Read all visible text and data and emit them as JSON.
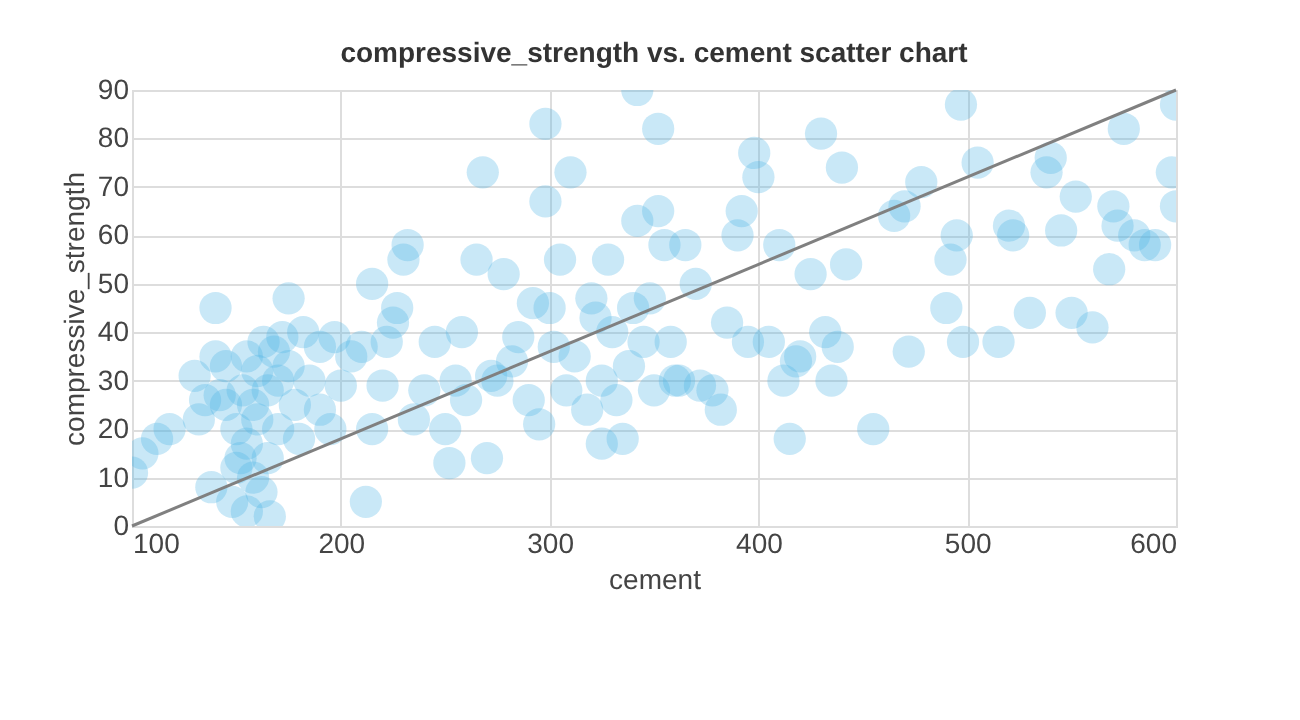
{
  "chart_data": {
    "type": "scatter",
    "title": "compressive_strength vs. cement scatter chart",
    "xlabel": "cement",
    "ylabel": "compressive_strength",
    "xlim": [
      100,
      600
    ],
    "ylim": [
      0,
      90
    ],
    "xticks": [
      100,
      200,
      300,
      400,
      500,
      600
    ],
    "yticks": [
      0,
      10,
      20,
      30,
      40,
      50,
      60,
      70,
      80,
      90
    ],
    "grid": true,
    "marker": "circle",
    "series": [
      {
        "color": "#4db4e6",
        "x": [
          100,
          105,
          112,
          118,
          130,
          132,
          135,
          138,
          140,
          140,
          142,
          145,
          145,
          148,
          150,
          150,
          152,
          153,
          155,
          155,
          155,
          158,
          158,
          160,
          160,
          162,
          163,
          165,
          165,
          166,
          168,
          170,
          170,
          172,
          175,
          175,
          178,
          180,
          182,
          185,
          190,
          190,
          195,
          197,
          200,
          205,
          210,
          212,
          215,
          215,
          220,
          222,
          225,
          227,
          230,
          232,
          235,
          240,
          245,
          250,
          252,
          255,
          258,
          260,
          265,
          268,
          270,
          272,
          275,
          278,
          282,
          285,
          290,
          292,
          295,
          298,
          298,
          300,
          302,
          305,
          308,
          310,
          312,
          318,
          320,
          322,
          325,
          325,
          328,
          330,
          332,
          335,
          338,
          340,
          342,
          342,
          345,
          348,
          350,
          352,
          352,
          355,
          358,
          360,
          362,
          365,
          370,
          372,
          378,
          382,
          385,
          390,
          392,
          395,
          398,
          400,
          405,
          410,
          412,
          415,
          418,
          420,
          425,
          430,
          432,
          435,
          438,
          440,
          442,
          455,
          465,
          470,
          472,
          478,
          490,
          492,
          495,
          497,
          498,
          505,
          515,
          520,
          522,
          530,
          538,
          540,
          545,
          550,
          552,
          560,
          568,
          570,
          572,
          575,
          580,
          585,
          590,
          598,
          600,
          600
        ],
        "values": [
          11,
          15,
          18,
          20,
          31,
          22,
          26,
          8,
          35,
          45,
          27,
          25,
          33,
          5,
          12,
          20,
          14,
          28,
          3,
          17,
          35,
          25,
          10,
          32,
          22,
          7,
          38,
          28,
          14,
          2,
          36,
          20,
          30,
          39,
          33,
          47,
          25,
          18,
          40,
          30,
          24,
          37,
          20,
          39,
          29,
          35,
          37,
          5,
          20,
          50,
          29,
          38,
          42,
          45,
          55,
          58,
          22,
          28,
          38,
          20,
          13,
          30,
          40,
          26,
          55,
          73,
          14,
          31,
          30,
          52,
          34,
          39,
          26,
          46,
          21,
          67,
          83,
          45,
          37,
          55,
          28,
          73,
          35,
          24,
          47,
          43,
          30,
          17,
          55,
          40,
          26,
          18,
          33,
          45,
          90,
          63,
          38,
          47,
          28,
          65,
          82,
          58,
          38,
          30,
          30,
          58,
          50,
          29,
          28,
          24,
          42,
          60,
          65,
          38,
          77,
          72,
          38,
          58,
          30,
          18,
          34,
          35,
          52,
          81,
          40,
          30,
          37,
          74,
          54,
          20,
          64,
          66,
          36,
          71,
          45,
          55,
          60,
          87,
          38,
          75,
          38,
          62,
          60,
          44,
          73,
          76,
          61,
          44,
          68,
          41,
          53,
          66,
          62,
          82,
          60,
          58,
          58,
          73,
          87,
          66
        ]
      },
      {
        "type": "line",
        "color": "#808080",
        "x": [
          100,
          600
        ],
        "values": [
          0,
          90
        ],
        "marker": "none",
        "line_style": "solid"
      }
    ]
  }
}
